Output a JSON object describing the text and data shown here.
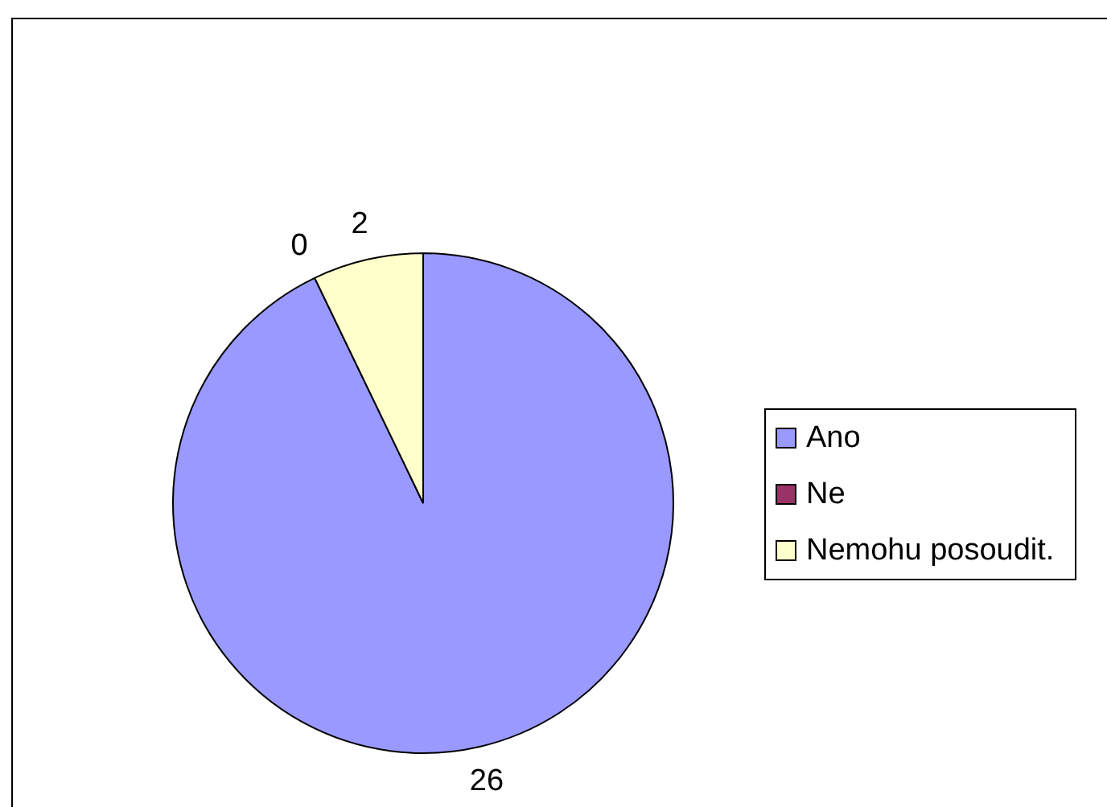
{
  "chart_data": {
    "type": "pie",
    "categories": [
      "Ano",
      "Ne",
      "Nemohu posoudit."
    ],
    "values": [
      26,
      0,
      2
    ],
    "colors": [
      "#9999ff",
      "#993366",
      "#ffffcc"
    ],
    "value_labels": [
      "26",
      "0",
      "2"
    ],
    "legend": "right"
  }
}
